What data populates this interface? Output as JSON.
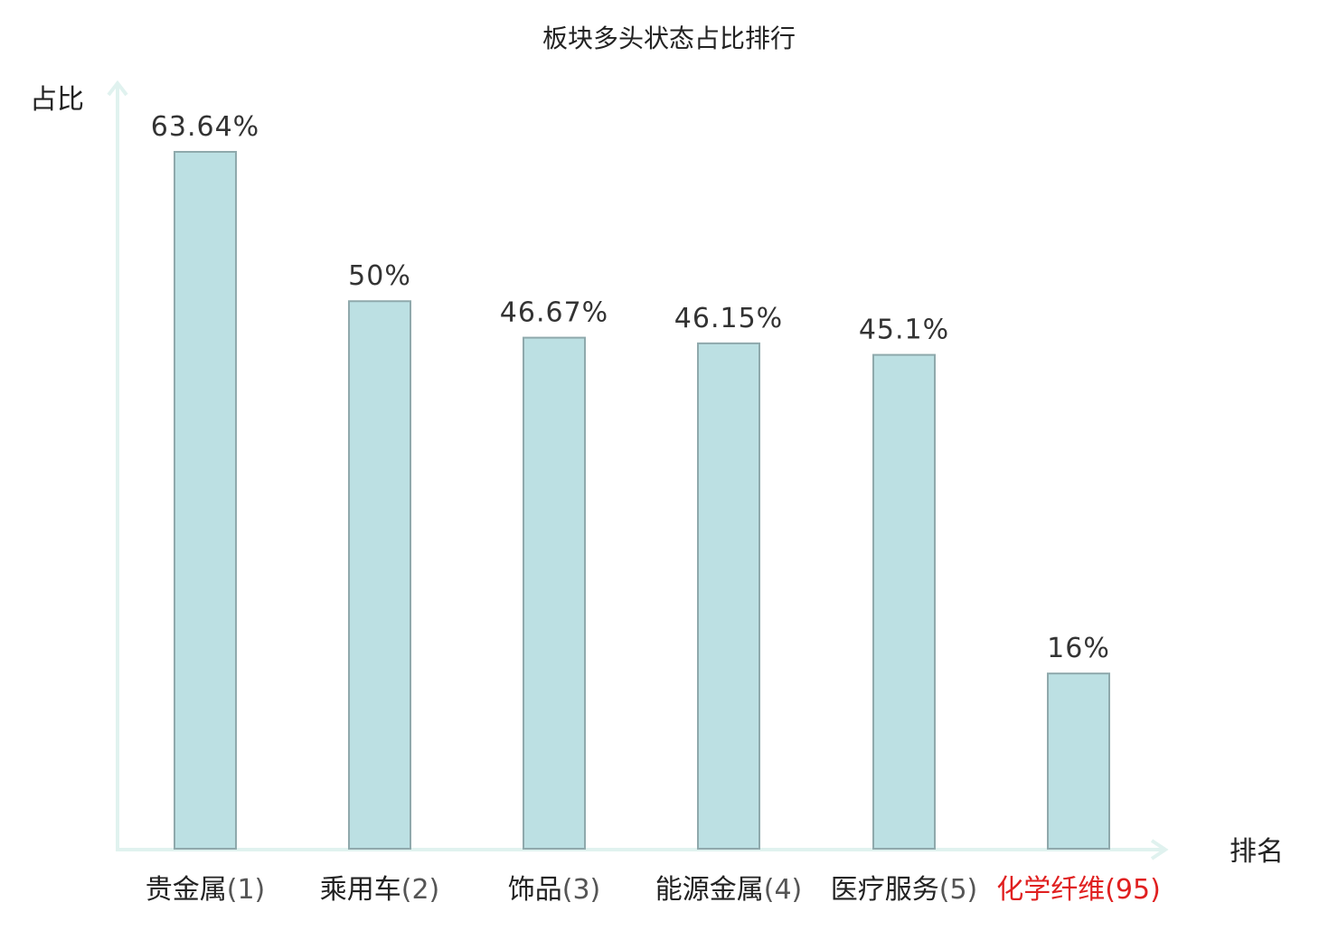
{
  "chart_data": {
    "type": "bar",
    "title": "板块多头状态占比排行",
    "ylabel": "占比",
    "xlabel": "排名",
    "categories": [
      {
        "name": "贵金属",
        "rank": "(1)",
        "highlight": false
      },
      {
        "name": "乘用车",
        "rank": "(2)",
        "highlight": false
      },
      {
        "name": "饰品",
        "rank": "(3)",
        "highlight": false
      },
      {
        "name": "能源金属",
        "rank": "(4)",
        "highlight": false
      },
      {
        "name": "医疗服务",
        "rank": "(5)",
        "highlight": false
      },
      {
        "name": "化学纤维",
        "rank": "(95)",
        "highlight": true
      }
    ],
    "values": [
      63.64,
      50,
      46.67,
      46.15,
      45.1,
      16
    ],
    "value_labels": [
      "63.64%",
      "50%",
      "46.67%",
      "46.15%",
      "45.1%",
      "16%"
    ],
    "ylim": [
      0,
      63.64
    ],
    "grid": false,
    "colors": {
      "bar_fill": "#bce0e3",
      "bar_stroke": "#8fa9ac",
      "axis": "#e0f2ef",
      "highlight": "#e02020",
      "normal_text": "#222222",
      "rank_text": "#555555"
    }
  }
}
